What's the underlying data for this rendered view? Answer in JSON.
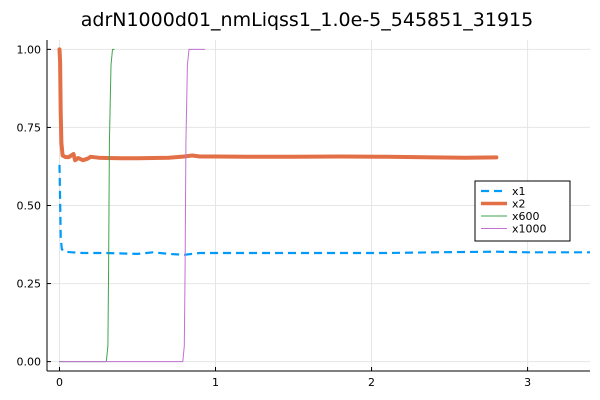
{
  "chart_data": {
    "type": "line",
    "title": "adrN1000d01_nmLiqss1_1.0e-5_545851_31915",
    "xlabel": "",
    "ylabel": "",
    "xlim": [
      -0.08,
      3.4
    ],
    "ylim": [
      -0.03,
      1.03
    ],
    "xticks": [
      0,
      1,
      2,
      3
    ],
    "yticks": [
      0.0,
      0.25,
      0.5,
      0.75,
      1.0
    ],
    "xtick_labels": [
      "0",
      "1",
      "2",
      "3"
    ],
    "ytick_labels": [
      "0.00",
      "0.25",
      "0.50",
      "0.75",
      "1.00"
    ],
    "grid": true,
    "legend_position": "right",
    "series": [
      {
        "name": "x1",
        "color": "#009af9",
        "style": "dashed",
        "width": 2.2,
        "x": [
          0,
          0.004,
          0.008,
          0.015,
          0.03,
          0.08,
          0.15,
          0.3,
          0.5,
          0.6,
          0.7,
          0.8,
          0.9,
          1.2,
          1.5,
          1.8,
          2.1,
          2.4,
          2.8,
          3.0,
          3.4
        ],
        "y": [
          0.63,
          0.52,
          0.4,
          0.36,
          0.352,
          0.35,
          0.348,
          0.348,
          0.345,
          0.35,
          0.345,
          0.342,
          0.348,
          0.348,
          0.348,
          0.348,
          0.348,
          0.35,
          0.352,
          0.35,
          0.35
        ]
      },
      {
        "name": "x2",
        "color": "#e26f46",
        "style": "solid",
        "width": 4,
        "x": [
          0,
          0.004,
          0.008,
          0.012,
          0.02,
          0.04,
          0.06,
          0.09,
          0.1,
          0.12,
          0.15,
          0.18,
          0.2,
          0.25,
          0.3,
          0.4,
          0.5,
          0.6,
          0.7,
          0.8,
          0.85,
          0.9,
          1.0,
          1.2,
          1.5,
          1.8,
          2.1,
          2.4,
          2.6,
          2.8
        ],
        "y": [
          1.0,
          0.96,
          0.8,
          0.7,
          0.66,
          0.655,
          0.655,
          0.665,
          0.645,
          0.652,
          0.645,
          0.65,
          0.656,
          0.653,
          0.652,
          0.651,
          0.651,
          0.652,
          0.653,
          0.657,
          0.66,
          0.657,
          0.657,
          0.656,
          0.656,
          0.657,
          0.656,
          0.654,
          0.653,
          0.654
        ]
      },
      {
        "name": "x600",
        "color": "#3da44d",
        "style": "solid",
        "width": 1,
        "x": [
          0,
          0.3,
          0.31,
          0.315,
          0.32,
          0.33,
          0.34,
          0.35
        ],
        "y": [
          0,
          0,
          0.05,
          0.3,
          0.7,
          0.95,
          1.0,
          1.0
        ]
      },
      {
        "name": "x1000",
        "color": "#c271d2",
        "style": "solid",
        "width": 1,
        "x": [
          0,
          0.79,
          0.8,
          0.805,
          0.81,
          0.82,
          0.83,
          0.93
        ],
        "y": [
          0,
          0,
          0.05,
          0.3,
          0.7,
          0.95,
          1.0,
          1.0
        ]
      }
    ]
  }
}
